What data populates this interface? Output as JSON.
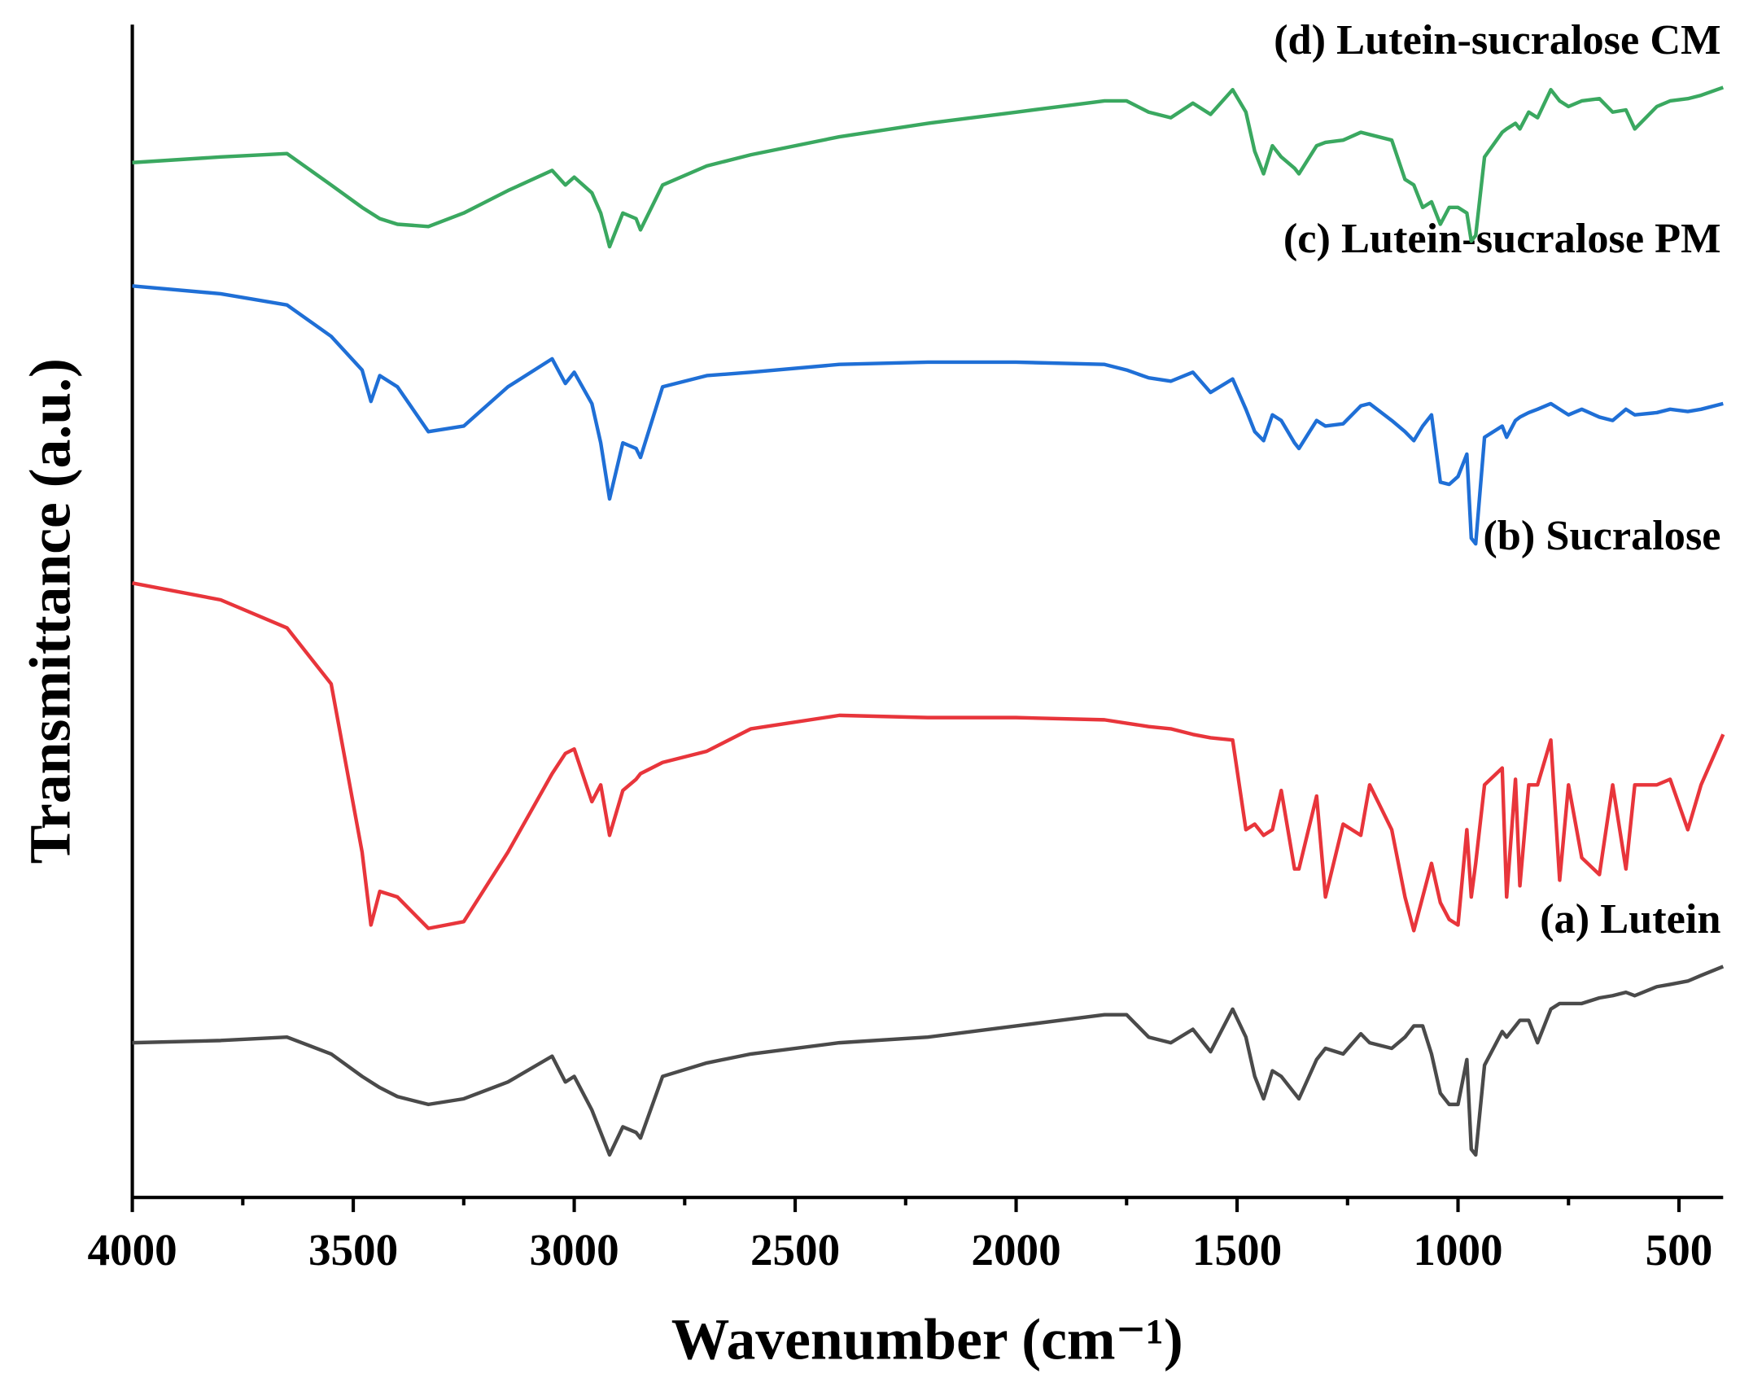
{
  "chart_data": {
    "type": "line",
    "xlabel": "Wavenumber (cm⁻¹)",
    "ylabel": "Transmittance (a.u.)",
    "xlim": [
      4000,
      400
    ],
    "xticks": [
      4000,
      3500,
      3000,
      2500,
      2000,
      1500,
      1000,
      500
    ],
    "xminorticks": [
      3750,
      3250,
      2750,
      2250,
      1750,
      1250,
      750
    ],
    "ylim": [
      0,
      1046
    ],
    "x": [
      4000,
      3800,
      3650,
      3550,
      3480,
      3460,
      3440,
      3400,
      3330,
      3250,
      3150,
      3050,
      3020,
      3000,
      2960,
      2940,
      2920,
      2890,
      2860,
      2850,
      2800,
      2700,
      2600,
      2400,
      2200,
      2000,
      1800,
      1750,
      1700,
      1650,
      1600,
      1560,
      1510,
      1480,
      1460,
      1440,
      1420,
      1400,
      1370,
      1360,
      1320,
      1300,
      1260,
      1220,
      1200,
      1150,
      1120,
      1100,
      1080,
      1060,
      1040,
      1020,
      1000,
      980,
      970,
      960,
      940,
      900,
      890,
      870,
      860,
      840,
      820,
      790,
      770,
      750,
      720,
      680,
      650,
      620,
      600,
      550,
      520,
      480,
      450,
      400
    ],
    "series": [
      {
        "name": "(a) Lutein",
        "color": "#4a4a4a",
        "values": [
          138,
          140,
          143,
          128,
          108,
          103,
          98,
          90,
          83,
          88,
          103,
          126,
          103,
          108,
          78,
          58,
          38,
          63,
          58,
          53,
          108,
          120,
          128,
          138,
          143,
          153,
          163,
          163,
          143,
          138,
          150,
          130,
          168,
          143,
          108,
          88,
          113,
          108,
          93,
          88,
          123,
          133,
          128,
          146,
          138,
          133,
          143,
          153,
          153,
          128,
          93,
          83,
          83,
          123,
          43,
          38,
          118,
          148,
          143,
          153,
          158,
          158,
          138,
          168,
          173,
          173,
          173,
          178,
          180,
          183,
          180,
          188,
          190,
          193,
          198,
          206
        ]
      },
      {
        "name": "(b) Sucralose",
        "color": "#e8353b",
        "values": [
          548,
          533,
          508,
          458,
          308,
          243,
          273,
          268,
          240,
          246,
          308,
          378,
          396,
          400,
          353,
          368,
          323,
          363,
          373,
          378,
          388,
          398,
          418,
          430,
          428,
          428,
          426,
          423,
          420,
          418,
          413,
          410,
          408,
          328,
          333,
          323,
          328,
          363,
          293,
          293,
          358,
          268,
          333,
          323,
          368,
          328,
          268,
          238,
          268,
          298,
          263,
          248,
          243,
          328,
          268,
          298,
          368,
          383,
          268,
          373,
          278,
          368,
          368,
          408,
          283,
          368,
          303,
          288,
          368,
          293,
          368,
          368,
          373,
          328,
          368,
          413
        ]
      },
      {
        "name": "(c) Lutein-sucralose PM",
        "color": "#1f6fd6",
        "values": [
          813,
          806,
          796,
          768,
          738,
          710,
          733,
          723,
          683,
          688,
          723,
          748,
          726,
          736,
          708,
          673,
          623,
          673,
          668,
          660,
          723,
          733,
          736,
          743,
          745,
          745,
          743,
          738,
          731,
          728,
          736,
          718,
          730,
          703,
          683,
          675,
          698,
          693,
          673,
          668,
          693,
          688,
          690,
          706,
          708,
          693,
          683,
          675,
          688,
          698,
          638,
          636,
          643,
          663,
          588,
          583,
          678,
          688,
          678,
          693,
          696,
          700,
          703,
          708,
          703,
          698,
          703,
          696,
          693,
          703,
          698,
          700,
          703,
          701,
          703,
          708
        ]
      },
      {
        "name": "(d) Lutein-sucralose CM",
        "color": "#3aa860",
        "values": [
          923,
          928,
          931,
          903,
          883,
          878,
          873,
          868,
          866,
          878,
          898,
          916,
          903,
          910,
          896,
          878,
          848,
          878,
          873,
          863,
          903,
          920,
          930,
          946,
          958,
          968,
          978,
          978,
          968,
          963,
          976,
          966,
          988,
          968,
          933,
          913,
          938,
          928,
          918,
          913,
          938,
          941,
          943,
          950,
          948,
          943,
          908,
          903,
          883,
          888,
          868,
          883,
          883,
          878,
          853,
          858,
          928,
          950,
          953,
          958,
          953,
          968,
          963,
          988,
          978,
          973,
          978,
          980,
          968,
          970,
          953,
          973,
          978,
          980,
          983,
          990
        ]
      }
    ]
  }
}
